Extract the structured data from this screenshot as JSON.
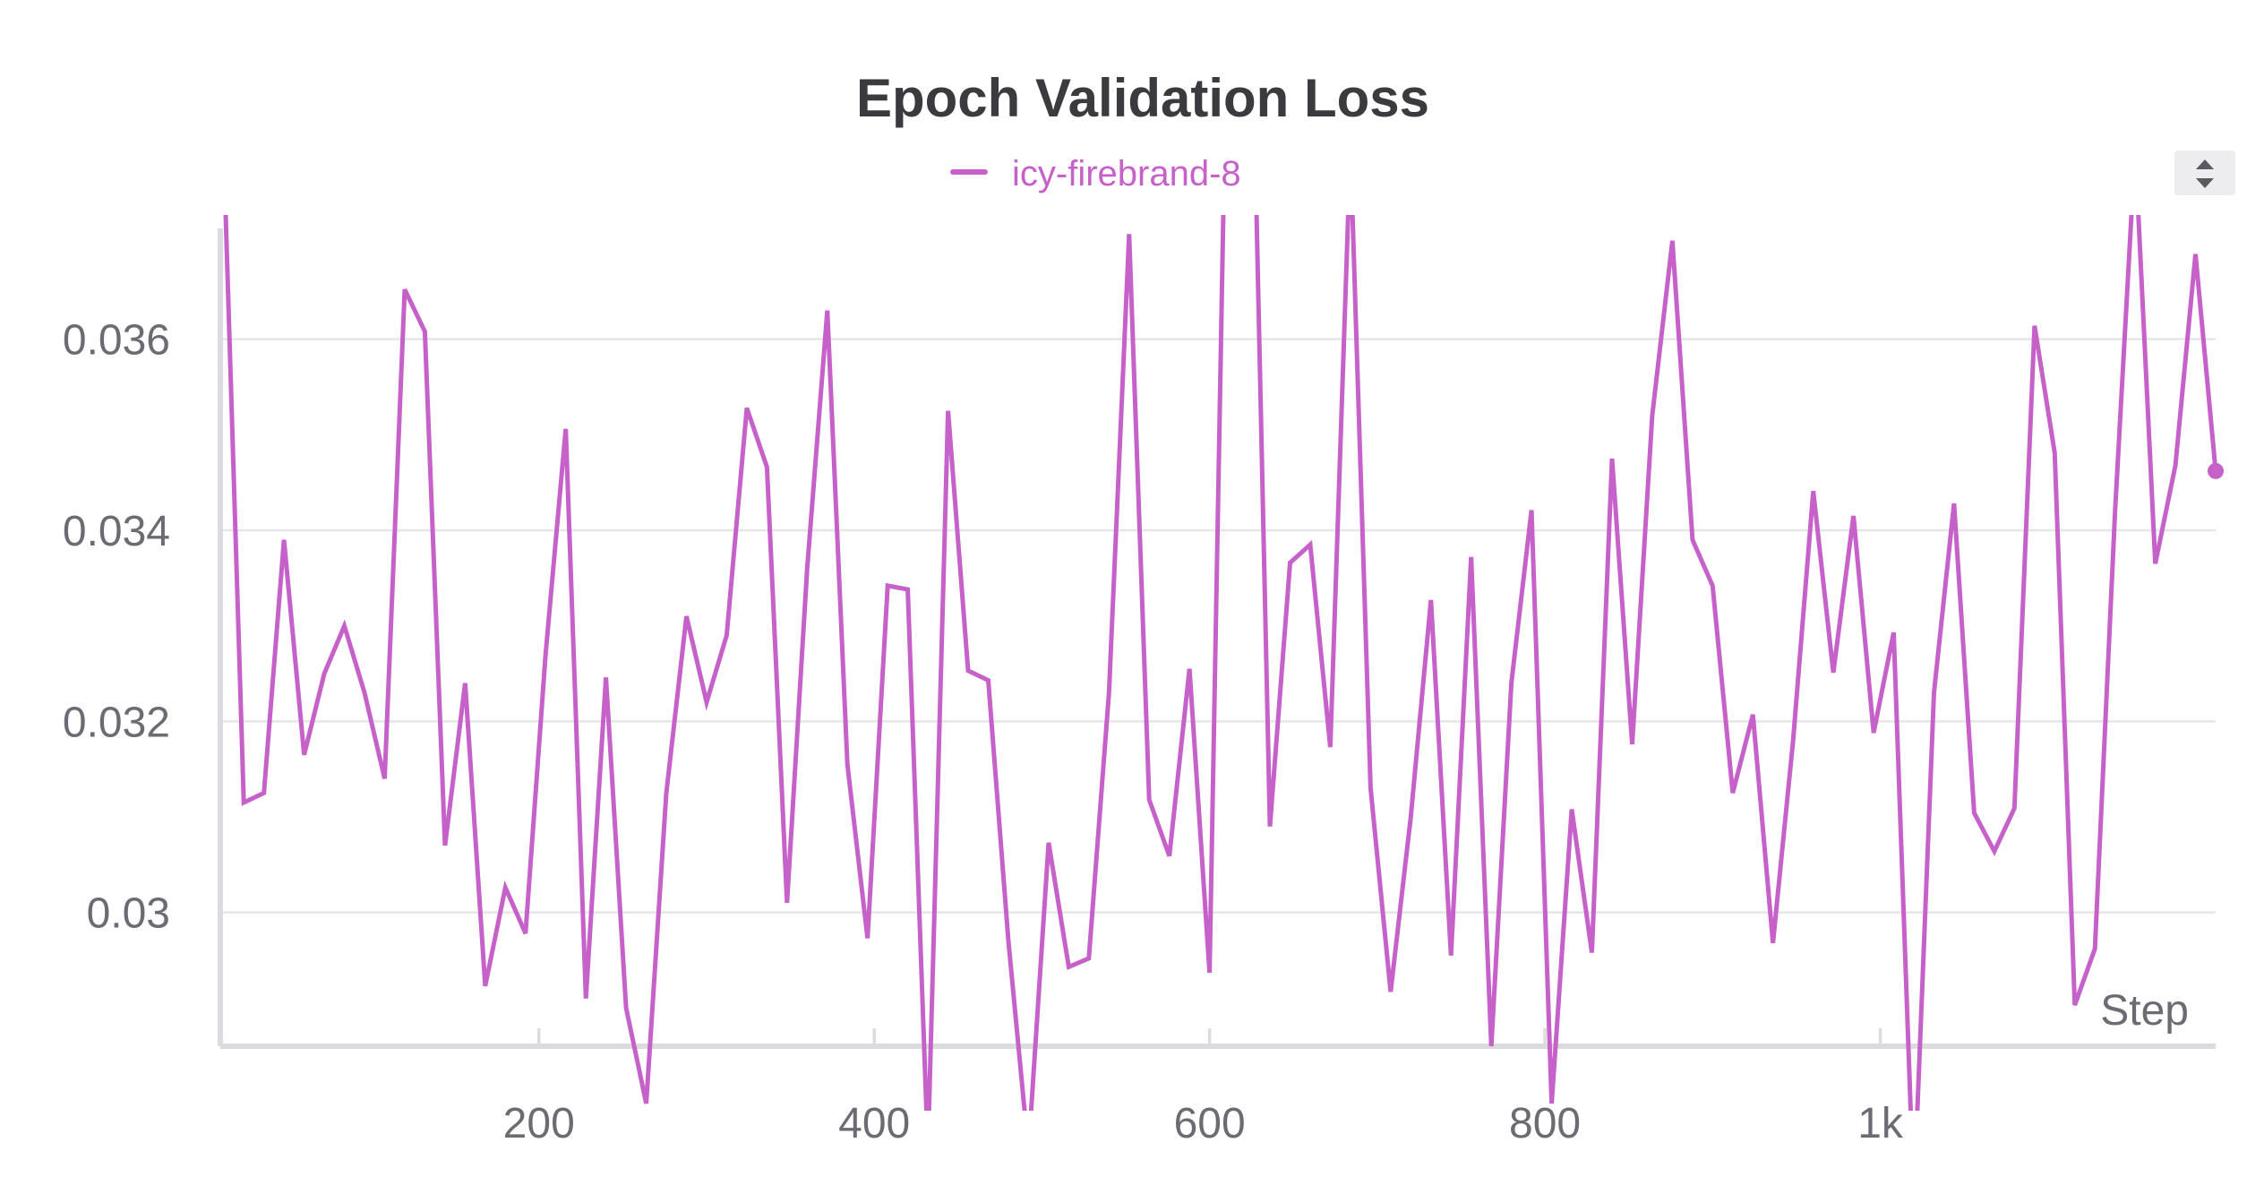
{
  "chart_data": {
    "type": "line",
    "title": "Epoch Validation Loss",
    "xlabel": "Step",
    "ylabel": "",
    "legend": {
      "placement": "top-center"
    },
    "grid": true,
    "xlim": [
      10,
      1200
    ],
    "ylim": [
      0.0286,
      0.0373
    ],
    "x_ticks": [
      {
        "value": 200,
        "label": "200"
      },
      {
        "value": 400,
        "label": "400"
      },
      {
        "value": 600,
        "label": "600"
      },
      {
        "value": 800,
        "label": "800"
      },
      {
        "value": 1000,
        "label": "1k"
      }
    ],
    "y_ticks": [
      {
        "value": 0.03,
        "label": "0.03"
      },
      {
        "value": 0.032,
        "label": "0.032"
      },
      {
        "value": 0.034,
        "label": "0.034"
      },
      {
        "value": 0.036,
        "label": "0.036"
      }
    ],
    "series": [
      {
        "name": "icy-firebrand-8",
        "color": "#c561c9",
        "x": [
          12,
          24,
          36,
          48,
          60,
          72,
          84,
          96,
          108,
          120,
          132,
          144,
          156,
          168,
          180,
          192,
          204,
          216,
          228,
          240,
          252,
          264,
          276,
          288,
          300,
          312,
          324,
          336,
          348,
          360,
          372,
          384,
          396,
          408,
          420,
          432,
          444,
          456,
          468,
          480,
          492,
          504,
          516,
          528,
          540,
          552,
          564,
          576,
          588,
          600,
          612,
          624,
          636,
          648,
          660,
          672,
          684,
          696,
          708,
          720,
          732,
          744,
          756,
          768,
          780,
          792,
          804,
          816,
          828,
          840,
          852,
          864,
          876,
          888,
          900,
          912,
          924,
          936,
          948,
          960,
          972,
          984,
          996,
          1008,
          1020,
          1032,
          1044,
          1056,
          1068,
          1080,
          1092,
          1104,
          1116,
          1128,
          1140,
          1152,
          1164,
          1176,
          1188,
          1200
        ],
        "y": [
          0.038,
          0.03115,
          0.03125,
          0.0339,
          0.03165,
          0.0325,
          0.033,
          0.0323,
          0.0314,
          0.03652,
          0.03608,
          0.0307,
          0.0324,
          0.02923,
          0.03026,
          0.02978,
          0.0327,
          0.03506,
          0.0291,
          0.03246,
          0.029,
          0.028,
          0.03125,
          0.0331,
          0.0322,
          0.0329,
          0.03528,
          0.03466,
          0.0301,
          0.0336,
          0.0363,
          0.03155,
          0.02973,
          0.03342,
          0.03338,
          0.0275,
          0.03525,
          0.03253,
          0.03243,
          0.0297,
          0.0275,
          0.03073,
          0.02943,
          0.02952,
          0.0323,
          0.0371,
          0.03118,
          0.03059,
          0.03255,
          0.02937,
          0.041,
          0.0405,
          0.0309,
          0.03366,
          0.03385,
          0.03173,
          0.038,
          0.0313,
          0.02917,
          0.031,
          0.03327,
          0.02955,
          0.03372,
          0.0286,
          0.0324,
          0.03421,
          0.028,
          0.03108,
          0.02958,
          0.03475,
          0.03176,
          0.0352,
          0.03703,
          0.0339,
          0.03342,
          0.03125,
          0.03207,
          0.02968,
          0.0318,
          0.03441,
          0.03251,
          0.03415,
          0.03188,
          0.03293,
          0.027,
          0.0323,
          0.03428,
          0.03104,
          0.03064,
          0.03109,
          0.03614,
          0.03481,
          0.02903,
          0.02962,
          0.0342,
          0.038,
          0.03365,
          0.03468,
          0.03689,
          0.03462
        ]
      }
    ]
  },
  "controls": {
    "legend_scroll_icon": "updown-arrows-icon"
  }
}
